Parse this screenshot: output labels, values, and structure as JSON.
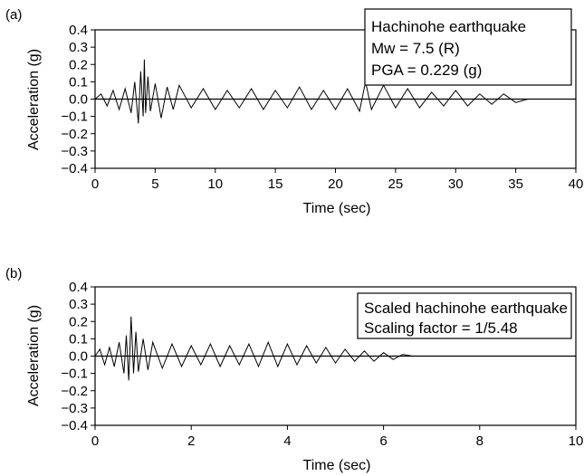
{
  "chart_data": [
    {
      "type": "line",
      "panel_label": "(a)",
      "xlabel": "Time (sec)",
      "ylabel": "Acceleration (g)",
      "xlim": [
        0,
        40
      ],
      "ylim": [
        -0.4,
        0.4
      ],
      "x_ticks": [
        0,
        5,
        10,
        15,
        20,
        25,
        30,
        35,
        40
      ],
      "x_tick_labels": [
        "0",
        "5",
        "10",
        "15",
        "20",
        "25",
        "30",
        "35",
        "40"
      ],
      "y_ticks": [
        0.4,
        0.3,
        0.2,
        0.1,
        0.0,
        -0.1,
        -0.2,
        -0.3,
        -0.4
      ],
      "y_tick_labels": [
        "0.4",
        "0.3",
        "0.2",
        "0.1",
        "0.0",
        "−0.1",
        "−0.2",
        "−0.3",
        "−0.4"
      ],
      "grid": false,
      "annotation_lines": [
        "Hachinohe earthquake",
        "Mw = 7.5 (R)",
        "PGA = 0.229 (g)"
      ],
      "annotation_placement": "top-right",
      "series": [
        {
          "x": [
            0,
            0.5,
            1,
            1.5,
            2,
            2.5,
            3,
            3.3,
            3.6,
            3.8,
            4.0,
            4.1,
            4.2,
            4.4,
            4.6,
            5,
            5.5,
            6,
            6.5,
            7,
            8,
            9,
            10,
            11,
            12,
            13,
            14,
            15,
            16,
            17,
            18,
            19,
            20,
            21,
            22,
            22.5,
            23,
            24,
            25,
            26,
            27,
            28,
            29,
            30,
            31,
            32,
            33,
            34,
            35,
            36
          ],
          "y": [
            0.0,
            0.03,
            -0.04,
            0.05,
            -0.06,
            0.06,
            -0.08,
            0.1,
            -0.14,
            0.16,
            -0.1,
            0.229,
            -0.08,
            0.13,
            -0.07,
            0.09,
            -0.11,
            0.07,
            -0.06,
            0.08,
            -0.05,
            0.06,
            -0.06,
            0.05,
            -0.05,
            0.06,
            -0.06,
            0.05,
            -0.05,
            0.07,
            -0.06,
            0.05,
            -0.06,
            0.06,
            -0.07,
            0.1,
            -0.06,
            0.08,
            -0.05,
            0.06,
            -0.05,
            0.04,
            -0.04,
            0.05,
            -0.04,
            0.03,
            -0.03,
            0.03,
            -0.02,
            0.0
          ]
        }
      ]
    },
    {
      "type": "line",
      "panel_label": "(b)",
      "xlabel": "Time (sec)",
      "ylabel": "Acceleration (g)",
      "xlim": [
        0,
        10
      ],
      "ylim": [
        -0.4,
        0.4
      ],
      "x_ticks": [
        0,
        2,
        4,
        6,
        8,
        10
      ],
      "x_tick_labels": [
        "0",
        "2",
        "4",
        "6",
        "8",
        "10"
      ],
      "y_ticks": [
        0.4,
        0.3,
        0.2,
        0.1,
        0.0,
        -0.1,
        -0.2,
        -0.3,
        -0.4
      ],
      "y_tick_labels": [
        "0.4",
        "0.3",
        "0.2",
        "0.1",
        "0.0",
        "−0.1",
        "−0.2",
        "−0.3",
        "−0.4"
      ],
      "grid": false,
      "annotation_lines": [
        "Scaled hachinohe earthquake",
        "Scaling factor = 1/5.48"
      ],
      "annotation_placement": "top-right",
      "series": [
        {
          "x": [
            0,
            0.1,
            0.2,
            0.3,
            0.4,
            0.5,
            0.6,
            0.65,
            0.7,
            0.75,
            0.8,
            0.85,
            0.9,
            1.0,
            1.1,
            1.2,
            1.4,
            1.6,
            1.8,
            2.0,
            2.2,
            2.4,
            2.6,
            2.8,
            3.0,
            3.2,
            3.4,
            3.6,
            3.8,
            4.0,
            4.2,
            4.4,
            4.6,
            4.8,
            5.0,
            5.2,
            5.4,
            5.6,
            5.8,
            6.0,
            6.2,
            6.4,
            6.6
          ],
          "y": [
            0.0,
            0.04,
            -0.05,
            0.05,
            -0.06,
            0.08,
            -0.1,
            0.12,
            -0.14,
            0.229,
            -0.1,
            0.14,
            -0.09,
            0.1,
            -0.08,
            0.08,
            -0.07,
            0.07,
            -0.06,
            0.06,
            -0.05,
            0.07,
            -0.06,
            0.06,
            -0.05,
            0.07,
            -0.06,
            0.08,
            -0.06,
            0.07,
            -0.05,
            0.06,
            -0.04,
            0.05,
            -0.04,
            0.04,
            -0.03,
            0.03,
            -0.03,
            0.02,
            -0.02,
            0.01,
            0.0
          ]
        }
      ]
    }
  ]
}
